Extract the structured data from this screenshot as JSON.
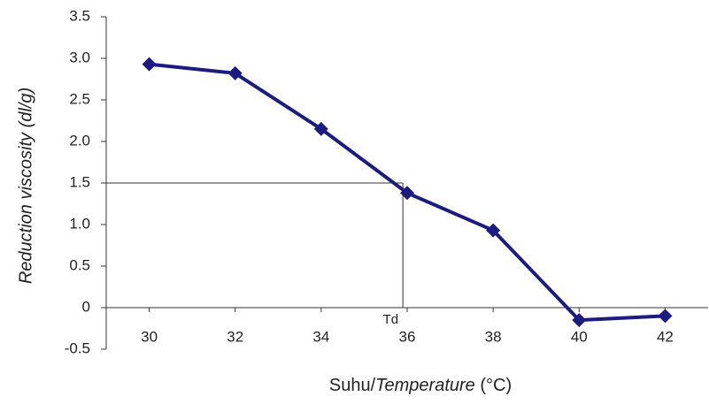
{
  "chart_data": {
    "type": "line",
    "ylabel": "Reduction viscosity (dl/g)",
    "xlabel": [
      "Suhu/",
      "Temperature",
      " (°C)"
    ],
    "x": [
      30,
      32,
      34,
      36,
      38,
      40,
      42
    ],
    "series": [
      {
        "name": "Reduction viscosity",
        "color": "#1c1c7e",
        "values": [
          2.93,
          2.82,
          2.15,
          1.38,
          0.93,
          -0.15,
          -0.1
        ]
      }
    ],
    "xlim": [
      29,
      43
    ],
    "xticks": [
      30,
      32,
      34,
      36,
      38,
      40,
      42
    ],
    "ylim": [
      -0.5,
      3.5
    ],
    "yticks": [
      -0.5,
      0,
      0.5,
      {
        "value": 1,
        "label": "1.0"
      },
      1.5,
      {
        "value": 2,
        "label": "2.0"
      },
      2.5,
      {
        "value": 3,
        "label": "3.0"
      },
      3.5
    ],
    "annotation": {
      "text": "Td",
      "x": 35.9,
      "y": 1.5
    }
  }
}
